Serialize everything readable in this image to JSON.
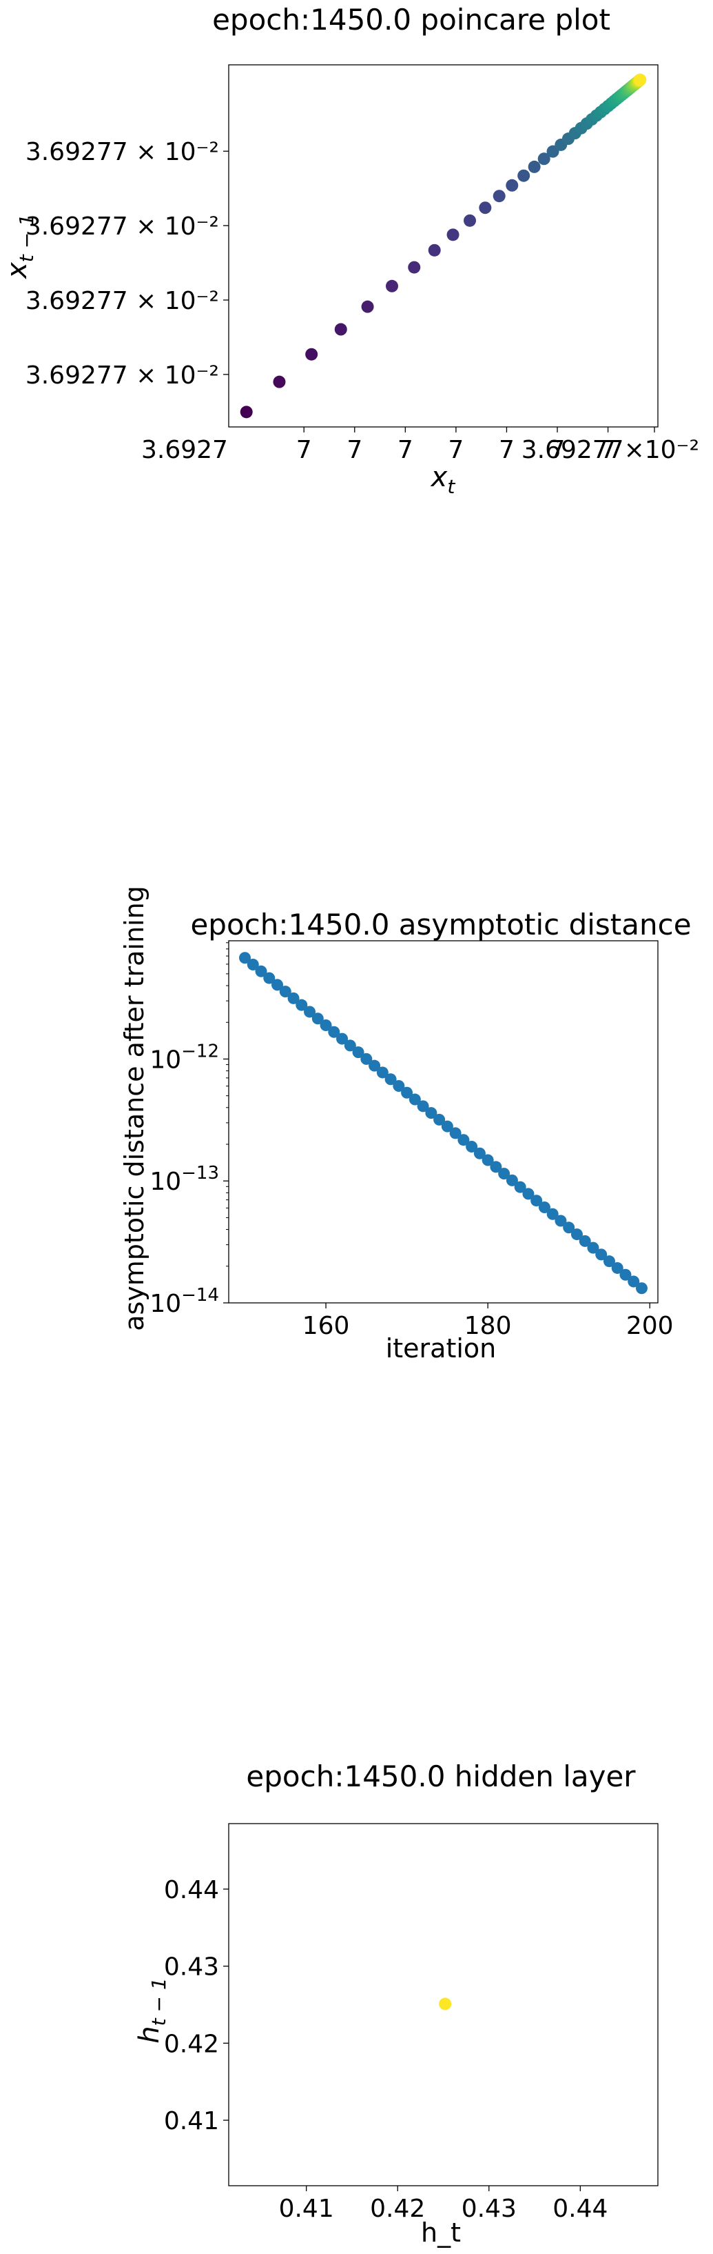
{
  "chart_data": [
    {
      "type": "scatter",
      "title": "epoch:1450.0 poincare plot",
      "xlabel": "x",
      "xlabel_sub": "t",
      "ylabel": "x",
      "ylabel_sub": "t − 1",
      "colormap": "viridis",
      "x_tick_label": "3.69277 × 10⁻²",
      "x_tick_texts": [
        "3.6927",
        "7",
        "7",
        "7",
        "7",
        "7",
        "7",
        "7",
        "3.69277×10⁻²"
      ],
      "y_tick_labels": [
        "3.69277 × 10⁻²",
        "3.69277 × 10⁻²",
        "3.69277 × 10⁻²",
        "3.69277 × 10⁻²"
      ],
      "points": [
        {
          "x": 0.0,
          "y": 0.0
        },
        {
          "x": 0.1036,
          "y": 0.1105
        },
        {
          "x": 0.2049,
          "y": 0.2115
        },
        {
          "x": 0.2973,
          "y": 0.3031
        },
        {
          "x": 0.3815,
          "y": 0.3863
        },
        {
          "x": 0.4583,
          "y": 0.4619
        },
        {
          "x": 0.5283,
          "y": 0.5307
        },
        {
          "x": 0.5922,
          "y": 0.5933
        },
        {
          "x": 0.6504,
          "y": 0.6502
        },
        {
          "x": 0.7035,
          "y": 0.7021
        },
        {
          "x": 0.7519,
          "y": 0.7493
        },
        {
          "x": 0.7961,
          "y": 0.7922
        },
        {
          "x": 0.8364,
          "y": 0.8313
        },
        {
          "x": 0.8731,
          "y": 0.8669
        },
        {
          "x": 0.9066,
          "y": 0.8993
        },
        {
          "x": 0.9371,
          "y": 0.9288
        },
        {
          "x": 0.965,
          "y": 0.9556
        },
        {
          "x": 0.9904,
          "y": 0.9801
        },
        {
          "x": 1.0136,
          "y": 1.0024
        },
        {
          "x": 1.0347,
          "y": 1.0227
        },
        {
          "x": 1.054,
          "y": 1.0412
        },
        {
          "x": 1.0716,
          "y": 1.058
        },
        {
          "x": 1.0876,
          "y": 1.0734
        },
        {
          "x": 1.1022,
          "y": 1.0874
        },
        {
          "x": 1.1155,
          "y": 1.1001
        },
        {
          "x": 1.1277,
          "y": 1.1117
        },
        {
          "x": 1.1388,
          "y": 1.1223
        },
        {
          "x": 1.1489,
          "y": 1.132
        },
        {
          "x": 1.1581,
          "y": 1.1408
        },
        {
          "x": 1.1665,
          "y": 1.1488
        },
        {
          "x": 1.1742,
          "y": 1.1561
        },
        {
          "x": 1.1812,
          "y": 1.1628
        },
        {
          "x": 1.1876,
          "y": 1.1688
        },
        {
          "x": 1.1934,
          "y": 1.1744
        },
        {
          "x": 1.1987,
          "y": 1.1794
        },
        {
          "x": 1.2036,
          "y": 1.184
        },
        {
          "x": 1.208,
          "y": 1.1882
        },
        {
          "x": 1.212,
          "y": 1.1921
        },
        {
          "x": 1.2157,
          "y": 1.1956
        },
        {
          "x": 1.219,
          "y": 1.1988
        },
        {
          "x": 1.2221,
          "y": 1.2017
        },
        {
          "x": 1.2249,
          "y": 1.2043
        },
        {
          "x": 1.2274,
          "y": 1.2067
        },
        {
          "x": 1.2297,
          "y": 1.2089
        },
        {
          "x": 1.2318,
          "y": 1.2109
        },
        {
          "x": 1.2338,
          "y": 1.2128
        },
        {
          "x": 1.2355,
          "y": 1.2145
        },
        {
          "x": 1.2371,
          "y": 1.216
        },
        {
          "x": 1.2386,
          "y": 1.2174
        },
        {
          "x": 1.2399,
          "y": 1.2187
        }
      ]
    },
    {
      "type": "scatter",
      "title": "epoch:1450.0 asymptotic distance",
      "xlabel": "iteration",
      "ylabel": "asymptotic distance after training",
      "yscale": "log",
      "color": "#1f77b4",
      "xlim": [
        148,
        201
      ],
      "ylim_log10": [
        -14.0,
        -11.03
      ],
      "xticks": [
        160,
        180,
        200
      ],
      "yticks": [
        {
          "exp": -14,
          "label": "10",
          "sup": "−14"
        },
        {
          "exp": -13,
          "label": "10",
          "sup": "−13"
        },
        {
          "exp": -12,
          "label": "10",
          "sup": "−12"
        }
      ],
      "x_start": 150,
      "x_end": 199,
      "log10_y_start": -11.17,
      "log10_y_end": -13.88
    },
    {
      "type": "scatter",
      "title": "epoch:1450.0 hidden layer",
      "xlabel": "h_t",
      "ylabel": "h",
      "ylabel_sub": "t − 1",
      "color": "#fde725",
      "xlim": [
        0.4015,
        0.4485
      ],
      "ylim": [
        0.4015,
        0.4485
      ],
      "xticks": [
        0.41,
        0.42,
        0.43,
        0.44
      ],
      "yticks": [
        0.41,
        0.42,
        0.43,
        0.44
      ],
      "points": [
        {
          "x": 0.4252,
          "y": 0.4251
        }
      ]
    }
  ]
}
